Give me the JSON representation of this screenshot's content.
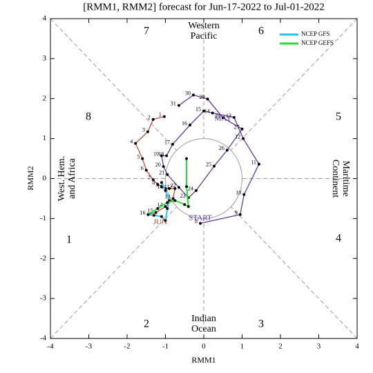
{
  "chart_data": {
    "type": "phase",
    "title": "[RMM1, RMM2] forecast for Jun-17-2022 to Jul-01-2022",
    "x_label": "RMM1",
    "y_label": "RMM2",
    "xlim": [
      -4,
      4
    ],
    "ylim": [
      -4,
      4
    ],
    "xticks": [
      -4,
      -3,
      -2,
      -1,
      0,
      1,
      2,
      3,
      4
    ],
    "yticks": [
      -4,
      -3,
      -2,
      -1,
      0,
      1,
      2,
      3,
      4
    ],
    "phase_labels": [
      "1",
      "2",
      "3",
      "4",
      "5",
      "6",
      "7",
      "8"
    ],
    "regions": {
      "top": [
        "Western",
        "Pacific"
      ],
      "bottom": [
        "Indian",
        "Ocean"
      ],
      "left": [
        "West. Hem.",
        "and Africa"
      ],
      "right": [
        "Maritime",
        "Continent"
      ]
    },
    "start_label": "START",
    "observed": [
      {
        "name": "MAY",
        "color": "#5b2a9a",
        "point_labels": [
          "8",
          "9",
          "10",
          "11",
          "12",
          "13",
          "14",
          "15",
          "16",
          "17",
          "18",
          "19",
          "20",
          "21",
          "22",
          "23",
          "24",
          "25",
          "26",
          "27",
          "28",
          "29",
          "30",
          "31"
        ],
        "x": [
          -0.09,
          0.95,
          1.05,
          1.44,
          1.03,
          0.79,
          0.23,
          0.0,
          -0.36,
          -0.81,
          -0.97,
          -1.1,
          -1.05,
          -0.95,
          -0.65,
          -0.4,
          -0.2,
          0.27,
          0.61,
          1.0,
          0.5,
          0.1,
          -0.27,
          -0.65
        ],
        "y": [
          -1.12,
          -0.9,
          -0.4,
          0.36,
          1.0,
          1.53,
          1.64,
          1.69,
          1.34,
          0.86,
          0.57,
          0.57,
          0.3,
          0.1,
          -0.22,
          -0.48,
          -0.3,
          0.31,
          0.71,
          1.24,
          1.52,
          1.99,
          2.09,
          1.83
        ]
      },
      {
        "name": "JUN",
        "color": "#c0392b",
        "point_labels": [
          "1",
          "2",
          "3",
          "4",
          "5",
          "6",
          "7",
          "8",
          "9",
          "10",
          "11",
          "12",
          "13",
          "14",
          "15",
          "16"
        ],
        "x": [
          -1.03,
          -1.32,
          -1.46,
          -1.78,
          -1.6,
          -1.5,
          -1.32,
          -1.2,
          -1.1,
          -1.0,
          -0.9,
          -0.75,
          -0.8,
          -1.0,
          -1.25,
          -1.45
        ],
        "y": [
          1.55,
          1.48,
          1.17,
          0.88,
          0.5,
          0.21,
          -0.03,
          -0.15,
          -0.2,
          -0.25,
          -0.25,
          -0.25,
          -0.5,
          -0.7,
          -0.85,
          -0.9
        ]
      }
    ],
    "series": [
      {
        "name": "NCEP GFS",
        "color": "#22c4f0",
        "x": [
          -1.45,
          -1.3,
          -1.1,
          -1.0,
          -0.95,
          -0.9,
          -1.0,
          -1.1
        ],
        "y": [
          -0.9,
          -0.92,
          -0.95,
          -1.05,
          -0.75,
          -0.55,
          -0.3,
          -0.1
        ]
      },
      {
        "name": "NCEP GEFS",
        "color": "#22e02a",
        "x": [
          -1.45,
          -1.2,
          -0.95,
          -0.75,
          -0.5,
          -0.4,
          -0.45,
          -0.45
        ],
        "y": [
          -0.9,
          -0.75,
          -0.6,
          -0.55,
          -0.65,
          -0.7,
          -0.2,
          0.5
        ]
      }
    ]
  }
}
